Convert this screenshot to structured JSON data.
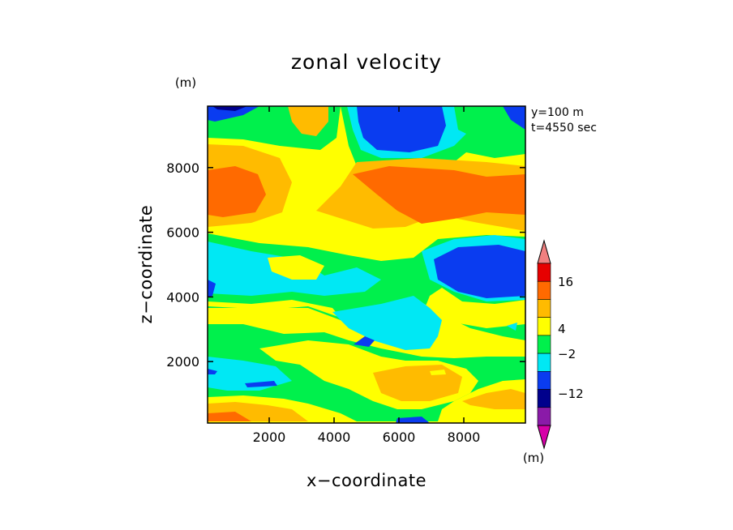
{
  "chart_data": {
    "type": "heatmap",
    "subtype": "filled-contour",
    "title": "zonal velocity",
    "xlabel": "x−coordinate",
    "ylabel": "z−coordinate",
    "x_unit": "(m)",
    "y_unit": "(m)",
    "colorbar_unit": "(m)",
    "annotation_lines": [
      "y=100 m",
      "t=4550 sec"
    ],
    "xlim": [
      100,
      9900
    ],
    "ylim": [
      100,
      9900
    ],
    "xticks": [
      2000,
      4000,
      6000,
      8000
    ],
    "yticks": [
      2000,
      4000,
      6000,
      8000
    ],
    "xtick_labels": [
      "2000",
      "4000",
      "6000",
      "8000"
    ],
    "ytick_labels": [
      "2000",
      "4000",
      "6000",
      "8000"
    ],
    "colorbar": {
      "labels": [
        "16",
        "4",
        "−2",
        "−12"
      ],
      "colors": [
        "#d600a8",
        "#8a1aa8",
        "#00008c",
        "#0a3cf0",
        "#00e8f4",
        "#00f04c",
        "#ffff00",
        "#ffbb00",
        "#ff6a00",
        "#e60000",
        "#f08080"
      ],
      "extend": "both"
    },
    "regions": [
      {
        "level": "yellow",
        "color": "#ffff00",
        "note": "background"
      },
      {
        "level": "cyan",
        "color": "#00e8f4"
      },
      {
        "level": "green",
        "color": "#00f04c"
      },
      {
        "level": "light-orange",
        "color": "#ffbb00"
      },
      {
        "level": "dark-orange",
        "color": "#ff6a00"
      },
      {
        "level": "blue",
        "color": "#0a3cf0"
      },
      {
        "level": "navy",
        "color": "#00008c"
      }
    ]
  }
}
